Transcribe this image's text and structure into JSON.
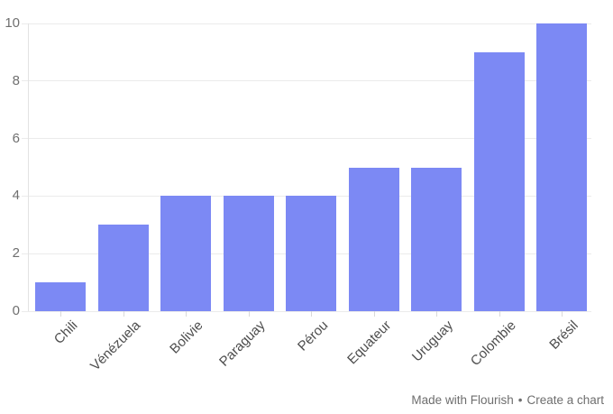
{
  "chart_data": {
    "type": "bar",
    "categories": [
      "Chili",
      "Vénézuela",
      "Bolivie",
      "Paraguay",
      "Pérou",
      "Equateur",
      "Uruguay",
      "Colombie",
      "Brésil"
    ],
    "values": [
      1,
      3,
      4,
      4,
      4,
      5,
      5,
      9,
      10
    ],
    "title": "",
    "xlabel": "",
    "ylabel": "",
    "ylim": [
      0,
      10
    ],
    "yticks": [
      0,
      2,
      4,
      6,
      8,
      10
    ],
    "grid": "horizontal",
    "legend": "none",
    "bar_color": "#7c89f4",
    "grid_color": "#ebebeb",
    "axis_line_color": "#e3e3e3",
    "tick_mark_color": "#d9d9d9",
    "y_tick_label_color": "#6f6f6f",
    "x_tick_label_color": "#4d4d4d"
  },
  "footer": {
    "made_with": "Made with Flourish",
    "separator": "•",
    "create": "Create a chart"
  }
}
